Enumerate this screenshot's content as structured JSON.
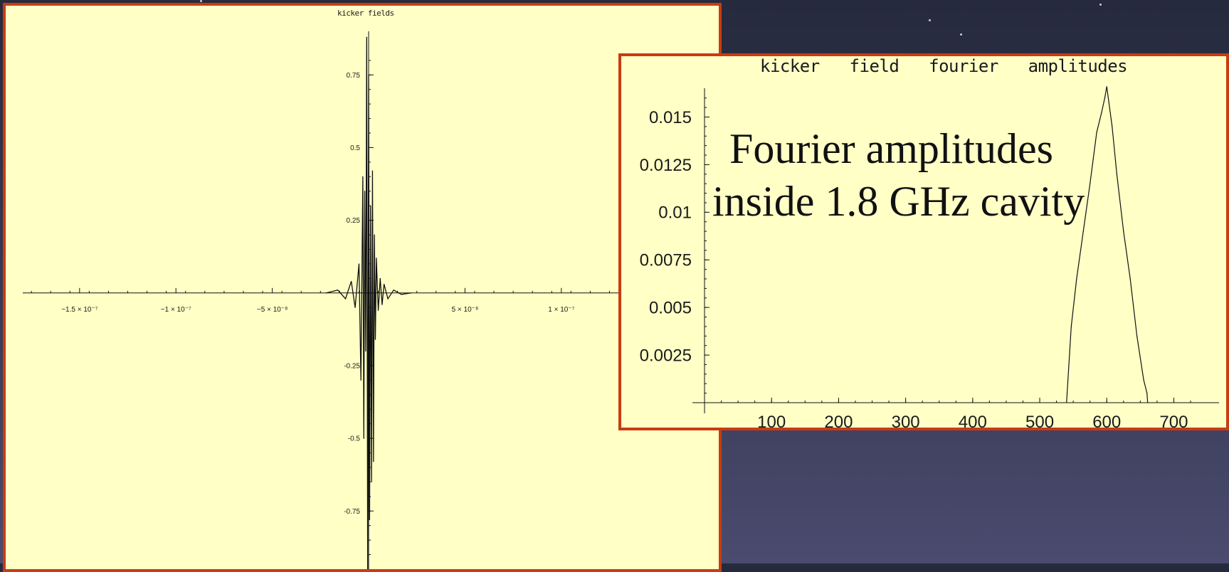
{
  "chart_data": [
    {
      "type": "line",
      "title": "kicker fields",
      "xlabel": "",
      "ylabel": "",
      "xlim": [
        -1.78e-07,
        1.78e-07
      ],
      "ylim": [
        -0.95,
        0.9
      ],
      "x_ticks": [
        {
          "value": -1.5e-07,
          "label": "−1.5 × 10⁻⁷"
        },
        {
          "value": -1e-07,
          "label": "−1 × 10⁻⁷"
        },
        {
          "value": -5e-08,
          "label": "−5 × 10⁻⁸"
        },
        {
          "value": 5e-08,
          "label": "5 × 10⁻⁸"
        },
        {
          "value": 1e-07,
          "label": "1 × 10⁻⁷"
        }
      ],
      "y_ticks": [
        {
          "value": 0.75,
          "label": "0.75"
        },
        {
          "value": 0.5,
          "label": "0.5"
        },
        {
          "value": 0.25,
          "label": "0.25"
        },
        {
          "value": -0.25,
          "label": "-0.25"
        },
        {
          "value": -0.5,
          "label": "-0.5"
        },
        {
          "value": -0.75,
          "label": "-0.75"
        }
      ],
      "series": [
        {
          "x": [
            -2.2e-08,
            -1.6e-08,
            -1.2e-08,
            -9e-09,
            -7e-09,
            -5e-09,
            -4e-09,
            -3e-09,
            -2.5e-09,
            -2e-09,
            -1.5e-09,
            -1e-09,
            -5e-10,
            0,
            5e-10,
            1e-09,
            1.5e-09,
            2e-09,
            2.5e-09,
            3e-09,
            3.5e-09,
            4e-09,
            5e-09,
            6e-09,
            7e-09,
            8e-09,
            1e-08,
            1.3e-08,
            1.7e-08,
            2.2e-08
          ],
          "values": [
            0.0,
            0.01,
            -0.02,
            0.04,
            -0.05,
            0.1,
            -0.3,
            0.4,
            -0.5,
            0.35,
            -0.2,
            0.88,
            -0.95,
            0.75,
            -0.78,
            0.3,
            -0.65,
            0.42,
            -0.58,
            0.2,
            -0.16,
            0.12,
            -0.06,
            0.05,
            -0.04,
            0.03,
            -0.02,
            0.01,
            -0.005,
            0.0
          ]
        }
      ],
      "grid": false
    },
    {
      "type": "line",
      "title": "kicker   field   fourier   amplitudes",
      "xlabel": "",
      "ylabel": "",
      "xlim": [
        0,
        725
      ],
      "ylim": [
        0,
        0.0167
      ],
      "x_ticks": [
        {
          "value": 100,
          "label": "100"
        },
        {
          "value": 200,
          "label": "200"
        },
        {
          "value": 300,
          "label": "300"
        },
        {
          "value": 400,
          "label": "400"
        },
        {
          "value": 500,
          "label": "500"
        },
        {
          "value": 600,
          "label": "600"
        },
        {
          "value": 700,
          "label": "700"
        }
      ],
      "y_ticks": [
        {
          "value": 0.0025,
          "label": "0.0025"
        },
        {
          "value": 0.005,
          "label": "0.005"
        },
        {
          "value": 0.0075,
          "label": "0.0075"
        },
        {
          "value": 0.01,
          "label": "0.01"
        },
        {
          "value": 0.0125,
          "label": "0.0125"
        },
        {
          "value": 0.015,
          "label": "0.015"
        }
      ],
      "series": [
        {
          "x": [
            540,
            547,
            555,
            565,
            575,
            585,
            592,
            597,
            600,
            603,
            608,
            615,
            625,
            635,
            645,
            655,
            660,
            661
          ],
          "values": [
            0.0,
            0.004,
            0.0065,
            0.009,
            0.0115,
            0.0142,
            0.0152,
            0.016,
            0.0166,
            0.0158,
            0.0145,
            0.012,
            0.009,
            0.0065,
            0.0035,
            0.0012,
            0.0005,
            0.0
          ]
        }
      ],
      "grid": false
    }
  ],
  "overlay": {
    "line1": "Fourier amplitudes",
    "line2": "inside 1.8 GHz cavity"
  }
}
